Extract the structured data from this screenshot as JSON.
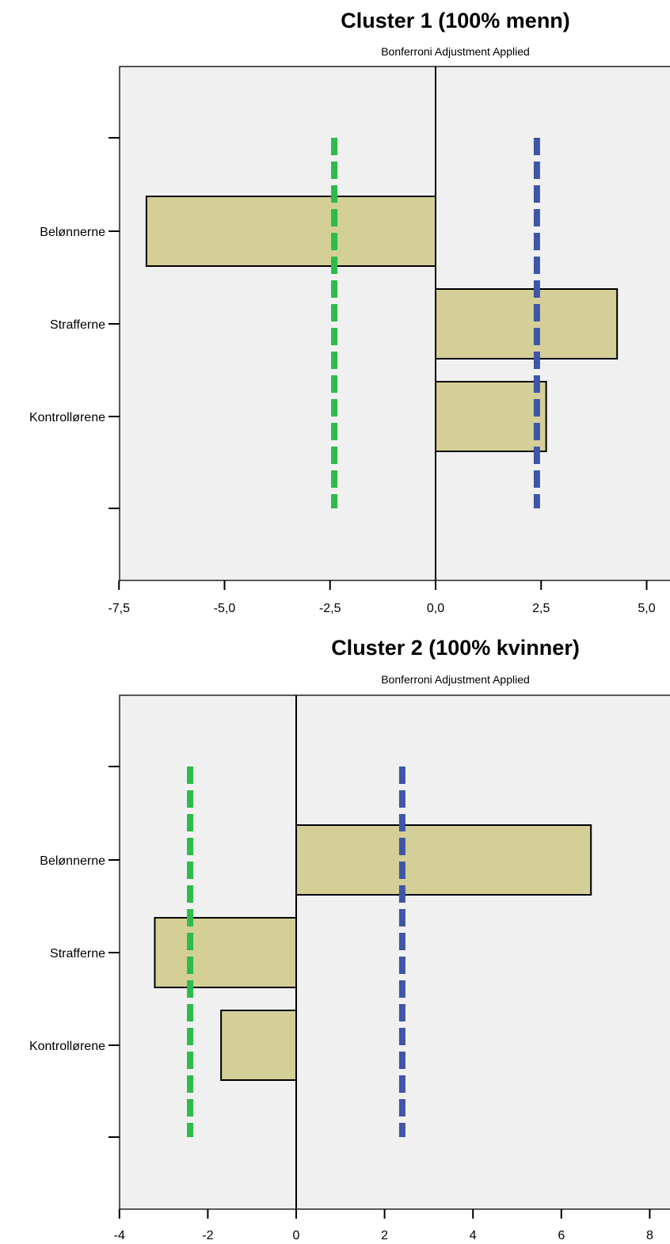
{
  "chart_data": [
    {
      "type": "bar",
      "orientation": "horizontal",
      "title": "Cluster 1 (100% menn)",
      "subtitle": "Bonferroni Adjustment Applied",
      "categories": [
        "Belønnerne",
        "Strafferne",
        "Kontrollørene"
      ],
      "values": [
        -6.85,
        4.3,
        2.62
      ],
      "xlim": [
        -7.5,
        5.5
      ],
      "xticks": [
        -7.5,
        -5.0,
        -2.5,
        0.0,
        2.5,
        5.0
      ],
      "xtick_labels": [
        "-7,5",
        "-5,0",
        "-2,5",
        "0,0",
        "2,5",
        "5,0"
      ],
      "critical_values": [
        {
          "value": -2.4,
          "color": "#2dbb4a"
        },
        {
          "value": 2.4,
          "color": "#3f55a8"
        }
      ],
      "grid": false,
      "bar_color": "#d3cf97",
      "background_color": "#f0f0f0"
    },
    {
      "type": "bar",
      "orientation": "horizontal",
      "title": "Cluster 2 (100% kvinner)",
      "subtitle": "Bonferroni Adjustment Applied",
      "categories": [
        "Belønnerne",
        "Strafferne",
        "Kontrollørene"
      ],
      "values": [
        6.67,
        -3.2,
        -1.7
      ],
      "xlim": [
        -4,
        8.5
      ],
      "xticks": [
        -4,
        -2,
        0,
        2,
        4,
        6,
        8
      ],
      "xtick_labels": [
        "-4",
        "-2",
        "0",
        "2",
        "4",
        "6",
        "8"
      ],
      "critical_values": [
        {
          "value": -2.4,
          "color": "#2dbb4a"
        },
        {
          "value": 2.4,
          "color": "#3f55a8"
        }
      ],
      "grid": false,
      "bar_color": "#d3cf97",
      "background_color": "#f0f0f0"
    }
  ]
}
